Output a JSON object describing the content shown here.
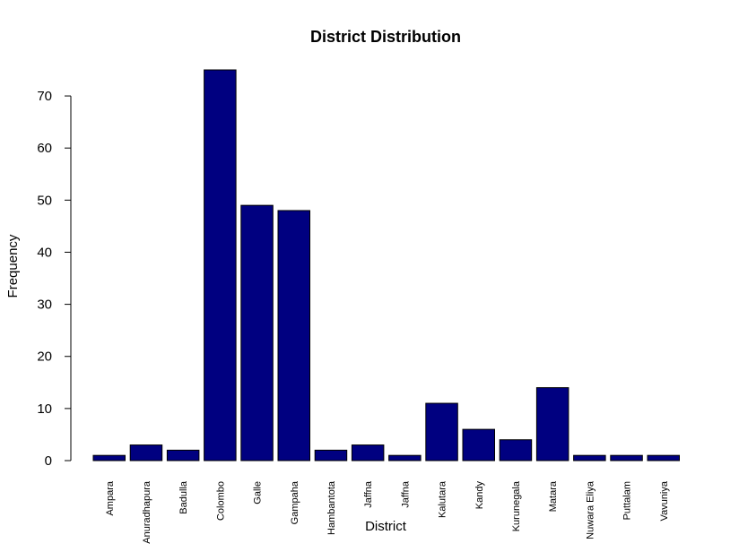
{
  "chart_data": {
    "type": "bar",
    "title": "District Distribution",
    "xlabel": "District",
    "ylabel": "Frequency",
    "categories": [
      "Ampara",
      "Anuradhapura",
      "Badulla",
      "Colombo",
      "Galle",
      "Gampaha",
      "Hambantota",
      "Jaffna",
      "Jaffna",
      "Kalutara",
      "Kandy",
      "Kurunegala",
      "Matara",
      "Nuwara Eliya",
      "Puttalam",
      "Vavuniya"
    ],
    "values": [
      1,
      3,
      2,
      75,
      49,
      48,
      2,
      3,
      1,
      11,
      6,
      4,
      14,
      1,
      1,
      1
    ],
    "ylim": [
      0,
      75
    ],
    "yticks": [
      0,
      10,
      20,
      30,
      40,
      50,
      60,
      70
    ],
    "grid": false,
    "bar_color": "#000080"
  }
}
